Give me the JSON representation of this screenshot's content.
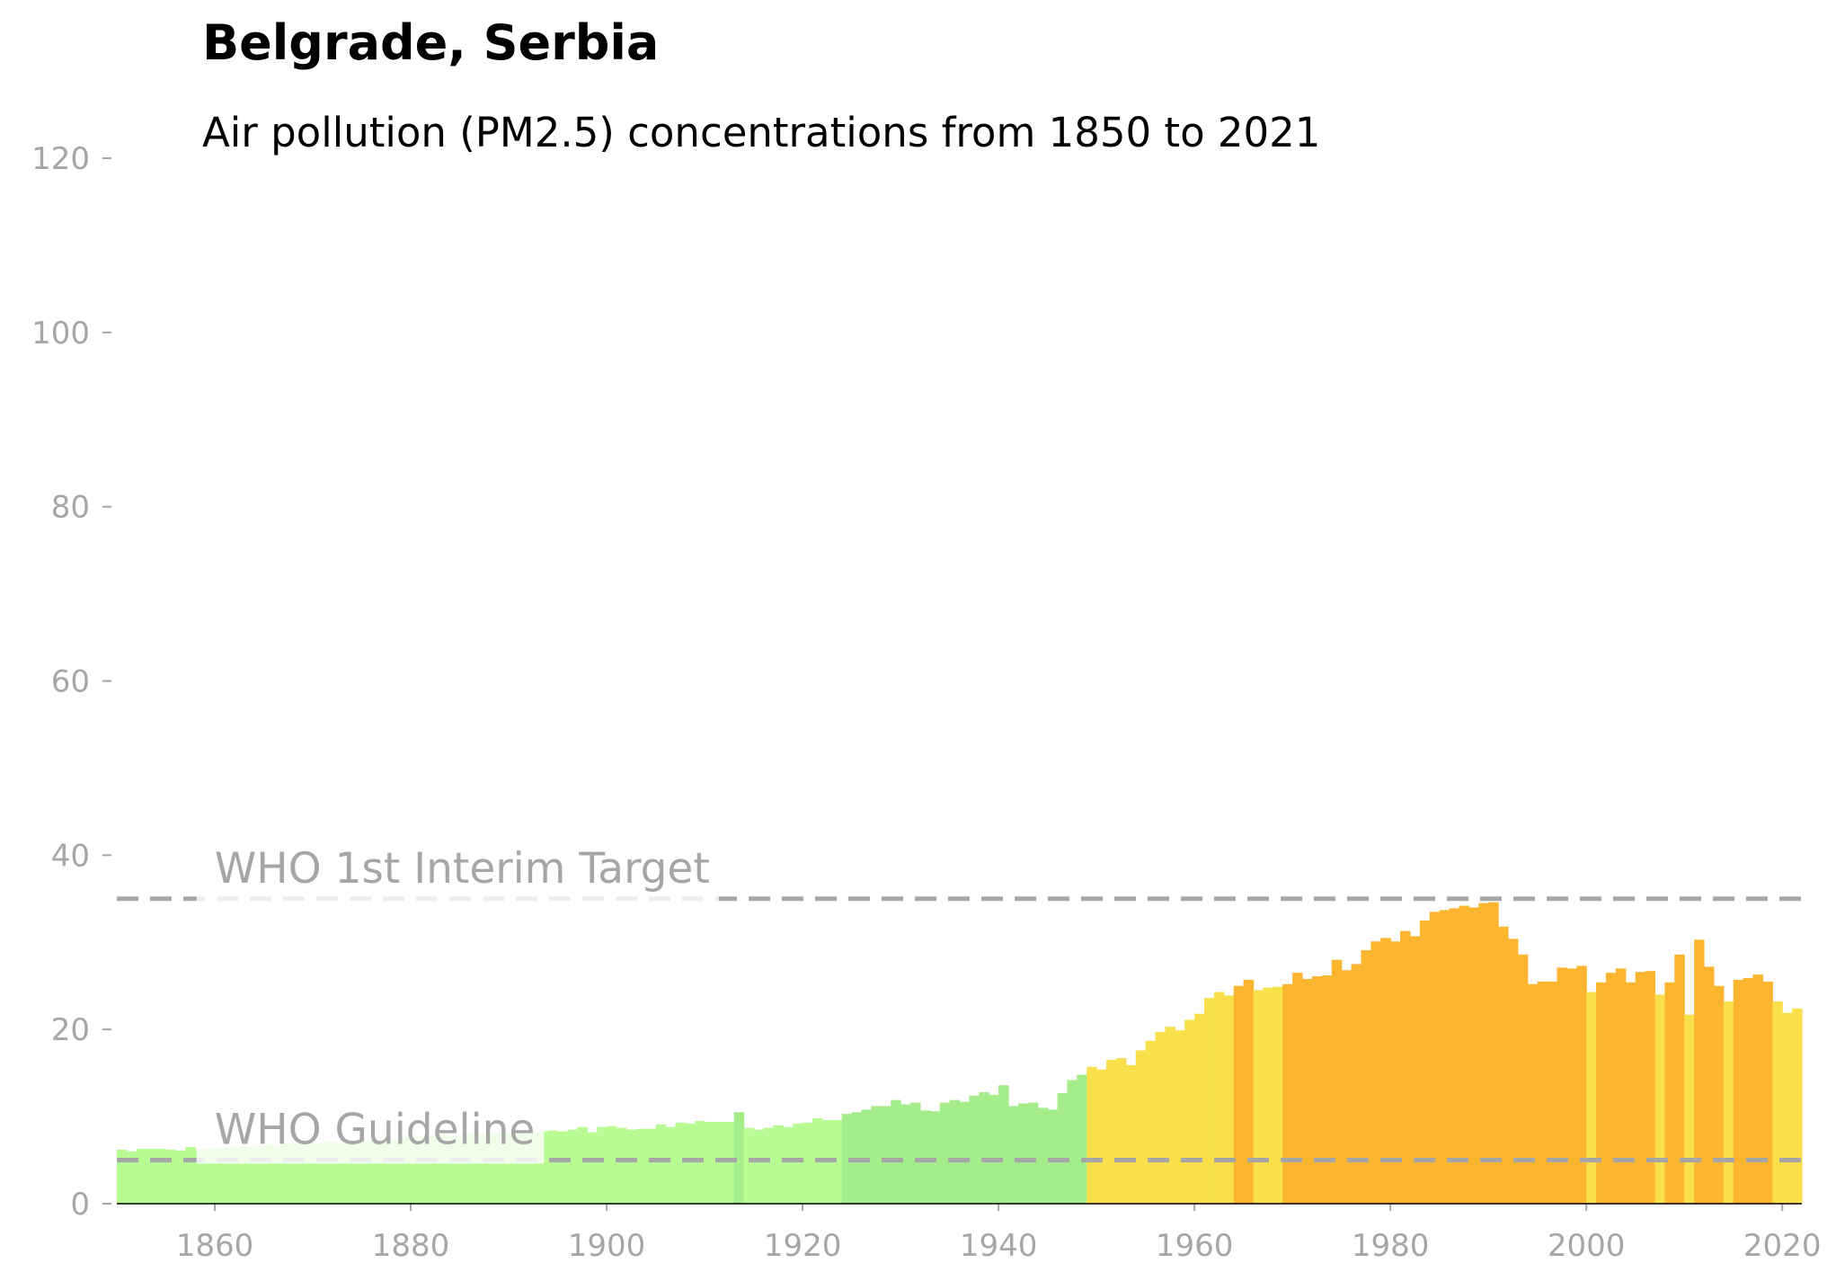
{
  "chart_data": {
    "type": "bar",
    "title": "Belgrade, Serbia",
    "subtitle": "Air pollution (PM2.5) concentrations from 1850 to 2021",
    "x": [
      1850,
      1851,
      1852,
      1853,
      1854,
      1855,
      1856,
      1857,
      1858,
      1859,
      1860,
      1861,
      1862,
      1863,
      1864,
      1865,
      1866,
      1867,
      1868,
      1869,
      1870,
      1871,
      1872,
      1873,
      1874,
      1875,
      1876,
      1877,
      1878,
      1879,
      1880,
      1881,
      1882,
      1883,
      1884,
      1885,
      1886,
      1887,
      1888,
      1889,
      1890,
      1891,
      1892,
      1893,
      1894,
      1895,
      1896,
      1897,
      1898,
      1899,
      1900,
      1901,
      1902,
      1903,
      1904,
      1905,
      1906,
      1907,
      1908,
      1909,
      1910,
      1911,
      1912,
      1913,
      1914,
      1915,
      1916,
      1917,
      1918,
      1919,
      1920,
      1921,
      1922,
      1923,
      1924,
      1925,
      1926,
      1927,
      1928,
      1929,
      1930,
      1931,
      1932,
      1933,
      1934,
      1935,
      1936,
      1937,
      1938,
      1939,
      1940,
      1941,
      1942,
      1943,
      1944,
      1945,
      1946,
      1947,
      1948,
      1949,
      1950,
      1951,
      1952,
      1953,
      1954,
      1955,
      1956,
      1957,
      1958,
      1959,
      1960,
      1961,
      1962,
      1963,
      1964,
      1965,
      1966,
      1967,
      1968,
      1969,
      1970,
      1971,
      1972,
      1973,
      1974,
      1975,
      1976,
      1977,
      1978,
      1979,
      1980,
      1981,
      1982,
      1983,
      1984,
      1985,
      1986,
      1987,
      1988,
      1989,
      1990,
      1991,
      1992,
      1993,
      1994,
      1995,
      1996,
      1997,
      1998,
      1999,
      2000,
      2001,
      2002,
      2003,
      2004,
      2005,
      2006,
      2007,
      2008,
      2009,
      2010,
      2011,
      2012,
      2013,
      2014,
      2015,
      2016,
      2017,
      2018,
      2019,
      2020,
      2021
    ],
    "values": [
      6.2,
      6.0,
      6.3,
      6.3,
      6.3,
      6.2,
      6.1,
      6.5,
      6.2,
      6.3,
      6.4,
      6.5,
      6.6,
      6.5,
      6.7,
      6.8,
      6.7,
      6.9,
      7.0,
      6.9,
      7.0,
      7.1,
      7.0,
      7.2,
      7.3,
      7.2,
      7.4,
      7.5,
      7.4,
      7.6,
      7.7,
      7.6,
      7.8,
      7.9,
      7.8,
      8.0,
      8.1,
      8.0,
      8.1,
      8.2,
      8.1,
      8.3,
      8.2,
      8.3,
      8.4,
      8.3,
      8.5,
      8.8,
      8.2,
      8.8,
      8.9,
      8.7,
      8.5,
      8.6,
      8.6,
      9.1,
      8.8,
      9.3,
      9.2,
      9.5,
      9.4,
      9.4,
      9.4,
      10.5,
      8.7,
      8.5,
      8.7,
      9.0,
      8.8,
      9.2,
      9.3,
      9.8,
      9.6,
      9.6,
      10.3,
      10.5,
      10.8,
      11.2,
      11.2,
      11.9,
      11.4,
      11.6,
      10.7,
      10.6,
      11.6,
      11.9,
      11.7,
      12.4,
      12.8,
      12.5,
      13.6,
      11.2,
      11.5,
      11.6,
      11.0,
      10.8,
      12.7,
      14.2,
      14.8,
      15.7,
      15.4,
      16.5,
      16.7,
      15.9,
      17.6,
      18.7,
      19.7,
      20.3,
      19.9,
      21.1,
      21.8,
      23.6,
      24.3,
      23.9,
      25.0,
      25.7,
      24.5,
      24.8,
      24.9,
      25.2,
      26.5,
      25.8,
      26.1,
      26.2,
      28.0,
      26.8,
      27.5,
      29.1,
      30.1,
      30.5,
      30.1,
      31.3,
      30.7,
      32.5,
      33.5,
      33.7,
      33.9,
      34.2,
      34.0,
      34.5,
      34.6,
      31.8,
      30.4,
      28.6,
      25.2,
      25.5,
      25.5,
      27.1,
      27.0,
      27.3,
      24.3,
      25.4,
      26.5,
      27.0,
      25.4,
      26.6,
      26.7,
      24.0,
      25.4,
      28.6,
      21.7,
      30.3,
      27.2,
      25.0,
      23.2,
      25.7,
      25.9,
      26.3,
      25.5,
      23.2,
      21.9,
      22.4
    ],
    "colors": [
      "#b8fb93",
      "#b8fb93",
      "#b8fb93",
      "#b8fb93",
      "#b8fb93",
      "#b8fb93",
      "#b8fb93",
      "#b8fb93",
      "#b8fb93",
      "#b8fb93",
      "#b8fb93",
      "#b8fb93",
      "#b8fb93",
      "#b8fb93",
      "#b8fb93",
      "#b8fb93",
      "#b8fb93",
      "#b8fb93",
      "#b8fb93",
      "#b8fb93",
      "#b8fb93",
      "#b8fb93",
      "#b8fb93",
      "#b8fb93",
      "#b8fb93",
      "#b8fb93",
      "#b8fb93",
      "#b8fb93",
      "#b8fb93",
      "#b8fb93",
      "#b8fb93",
      "#b8fb93",
      "#b8fb93",
      "#b8fb93",
      "#b8fb93",
      "#b8fb93",
      "#b8fb93",
      "#b8fb93",
      "#b8fb93",
      "#b8fb93",
      "#b8fb93",
      "#b8fb93",
      "#b8fb93",
      "#b8fb93",
      "#b8fb93",
      "#b8fb93",
      "#b8fb93",
      "#b8fb93",
      "#b8fb93",
      "#b8fb93",
      "#b8fb93",
      "#b8fb93",
      "#b8fb93",
      "#b8fb93",
      "#b8fb93",
      "#b8fb93",
      "#b8fb93",
      "#b8fb93",
      "#b8fb93",
      "#b8fb93",
      "#b8fb93",
      "#b8fb93",
      "#b8fb93",
      "#a5ec8a",
      "#b8fb93",
      "#b8fb93",
      "#b8fb93",
      "#b8fb93",
      "#b8fb93",
      "#b8fb93",
      "#b8fb93",
      "#b8fb93",
      "#b8fb93",
      "#b8fb93",
      "#a5ec8a",
      "#a5ec8a",
      "#a5ec8a",
      "#a5ec8a",
      "#a5ec8a",
      "#a5ec8a",
      "#a5ec8a",
      "#a5ec8a",
      "#a5ec8a",
      "#a5ec8a",
      "#a5ec8a",
      "#a5ec8a",
      "#a5ec8a",
      "#a5ec8a",
      "#a5ec8a",
      "#a5ec8a",
      "#a5ec8a",
      "#a5ec8a",
      "#a5ec8a",
      "#a5ec8a",
      "#a5ec8a",
      "#a5ec8a",
      "#a5ec8a",
      "#a5ec8a",
      "#a5ec8a",
      "#f9e04b",
      "#f9e04b",
      "#f9e04b",
      "#f9e04b",
      "#f9e04b",
      "#f9e04b",
      "#f9e04b",
      "#f9e04b",
      "#f9e04b",
      "#f9e04b",
      "#f9e04b",
      "#f9e04b",
      "#f9e04b",
      "#f9e04b",
      "#f9e04b",
      "#fbb52f",
      "#fbb52f",
      "#f9e04b",
      "#f9e04b",
      "#f9e04b",
      "#fbb52f",
      "#fbb52f",
      "#fbb52f",
      "#fbb52f",
      "#fbb52f",
      "#fbb52f",
      "#fbb52f",
      "#fbb52f",
      "#fbb52f",
      "#fbb52f",
      "#fbb52f",
      "#fbb52f",
      "#fbb52f",
      "#fbb52f",
      "#fbb52f",
      "#fbb52f",
      "#fbb52f",
      "#fbb52f",
      "#fbb52f",
      "#fbb52f",
      "#fbb52f",
      "#fbb52f",
      "#fbb52f",
      "#fbb52f",
      "#fbb52f",
      "#fbb52f",
      "#fbb52f",
      "#fbb52f",
      "#fbb52f",
      "#fbb52f",
      "#fbb52f",
      "#f9e04b",
      "#fbb52f",
      "#fbb52f",
      "#fbb52f",
      "#fbb52f",
      "#fbb52f",
      "#fbb52f",
      "#f9e04b",
      "#fbb52f",
      "#fbb52f",
      "#f9e04b",
      "#fbb52f",
      "#fbb52f",
      "#fbb52f",
      "#f9e04b",
      "#fbb52f",
      "#fbb52f",
      "#fbb52f",
      "#fbb52f",
      "#f9e04b",
      "#f9e04b",
      "#f9e04b"
    ],
    "annotations": [
      {
        "text": "WHO 1st Interim Target",
        "value": 35
      },
      {
        "text": "WHO Guideline",
        "value": 5
      }
    ],
    "annotation_color": "#a6a6a6",
    "xlim": [
      1850,
      2022
    ],
    "xticks": [
      1860,
      1880,
      1900,
      1920,
      1940,
      1960,
      1980,
      2000,
      2020
    ],
    "ylim": [
      0,
      120
    ],
    "yticks": [
      0,
      20,
      40,
      60,
      80,
      100,
      120
    ],
    "grid": false
  }
}
